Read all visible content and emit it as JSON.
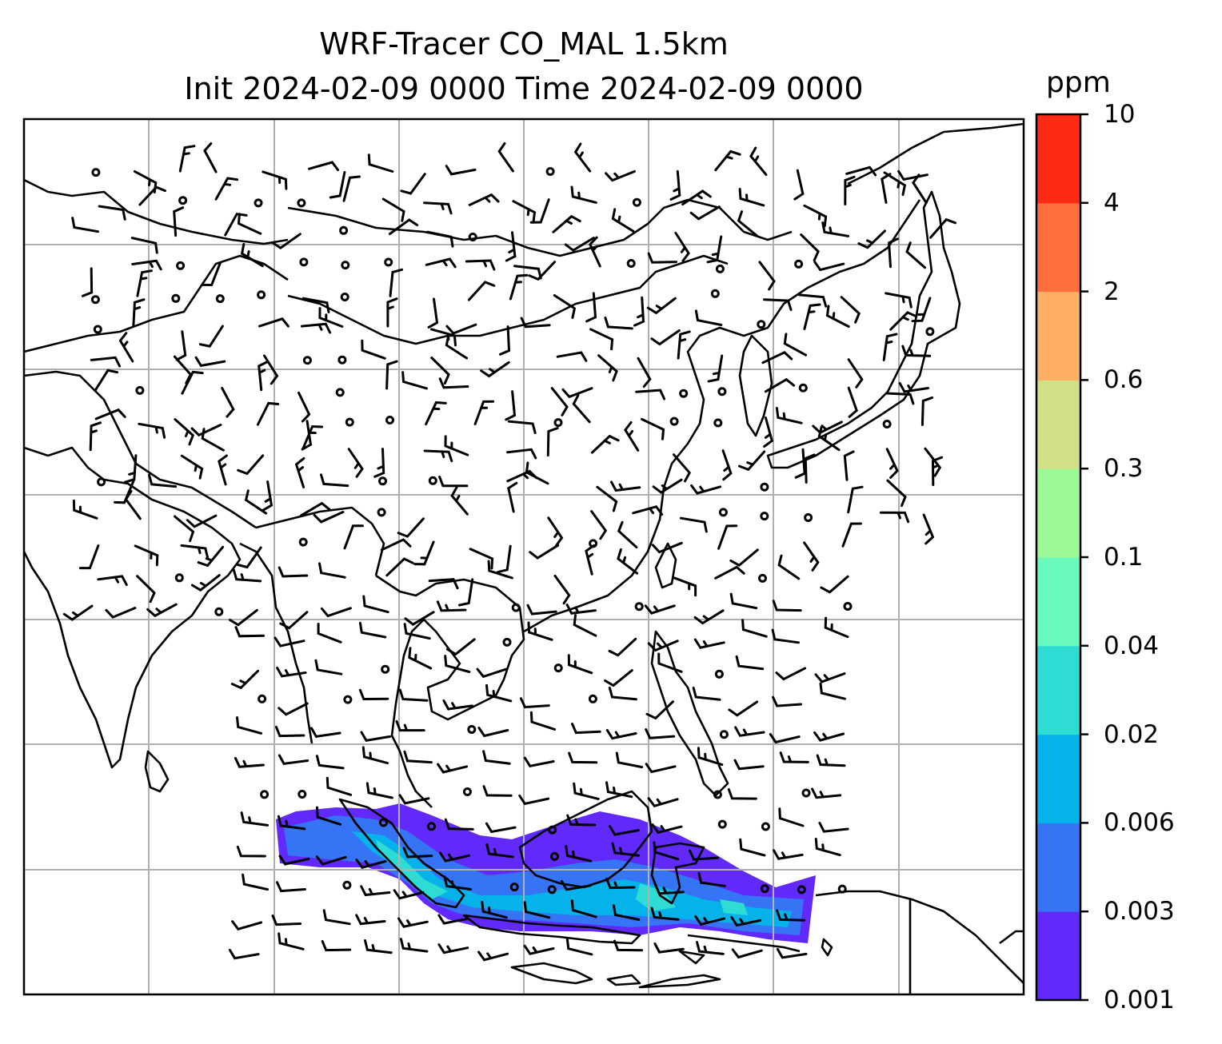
{
  "title": {
    "line1": "WRF-Tracer CO_MAL 1.5km",
    "line2": "Init 2024-02-09 0000 Time 2024-02-09 0000"
  },
  "colorbar": {
    "unit": "ppm",
    "levels": [
      "0.001",
      "0.003",
      "0.006",
      "0.02",
      "0.04",
      "0.1",
      "0.3",
      "0.6",
      "2",
      "4",
      "10"
    ],
    "colors": [
      "#6229fb",
      "#3574f5",
      "#05b3ea",
      "#2fdcd4",
      "#6bfabe",
      "#9bfa96",
      "#d0e185",
      "#feaf64",
      "#fe6f3d",
      "#fe2a16"
    ]
  },
  "map": {
    "grid": true,
    "grid_color": "#b0b0b0",
    "tracer_region": "CO_MAL"
  }
}
